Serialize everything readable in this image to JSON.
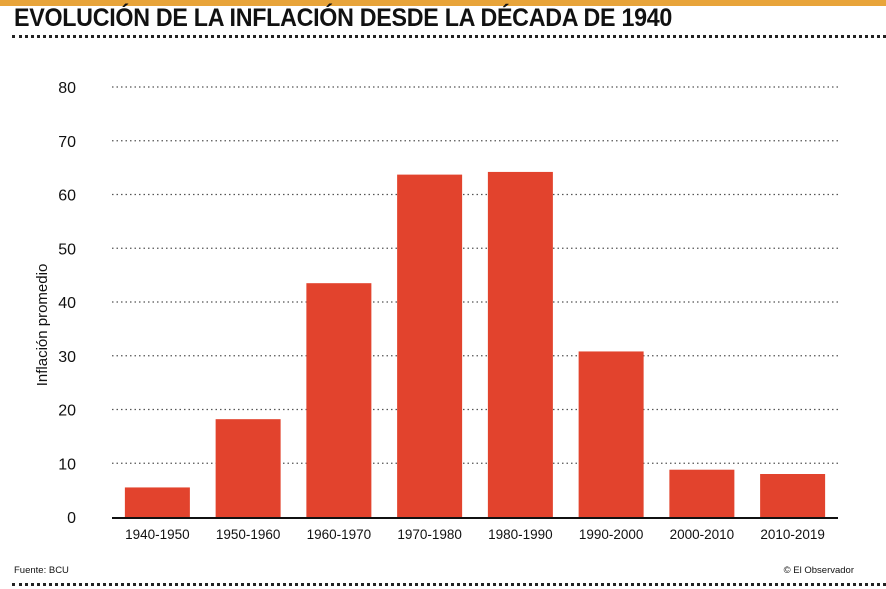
{
  "header": {
    "title": "EVOLUCIÓN DE LA INFLACIÓN DESDE LA DÉCADA DE 1940"
  },
  "footer": {
    "source": "Fuente: BCU",
    "credit": "© El Observador"
  },
  "colors": {
    "bar": "#e2432d",
    "accent_bar": "#e8a43a",
    "gridline": "#555555",
    "axis": "#111111"
  },
  "chart_data": {
    "type": "bar",
    "title": "EVOLUCIÓN DE LA INFLACIÓN DESDE LA DÉCADA DE 1940",
    "xlabel": "",
    "ylabel": "Inflación promedio",
    "categories": [
      "1940-1950",
      "1950-1960",
      "1960-1970",
      "1970-1980",
      "1980-1990",
      "1990-2000",
      "2000-2010",
      "2010-2019"
    ],
    "values": [
      5.5,
      18.2,
      43.5,
      63.7,
      64.2,
      30.8,
      8.8,
      8.0
    ],
    "ylim": [
      0,
      80
    ],
    "yticks": [
      0,
      10,
      20,
      30,
      40,
      50,
      60,
      70,
      80
    ],
    "grid": true,
    "legend": "none"
  }
}
